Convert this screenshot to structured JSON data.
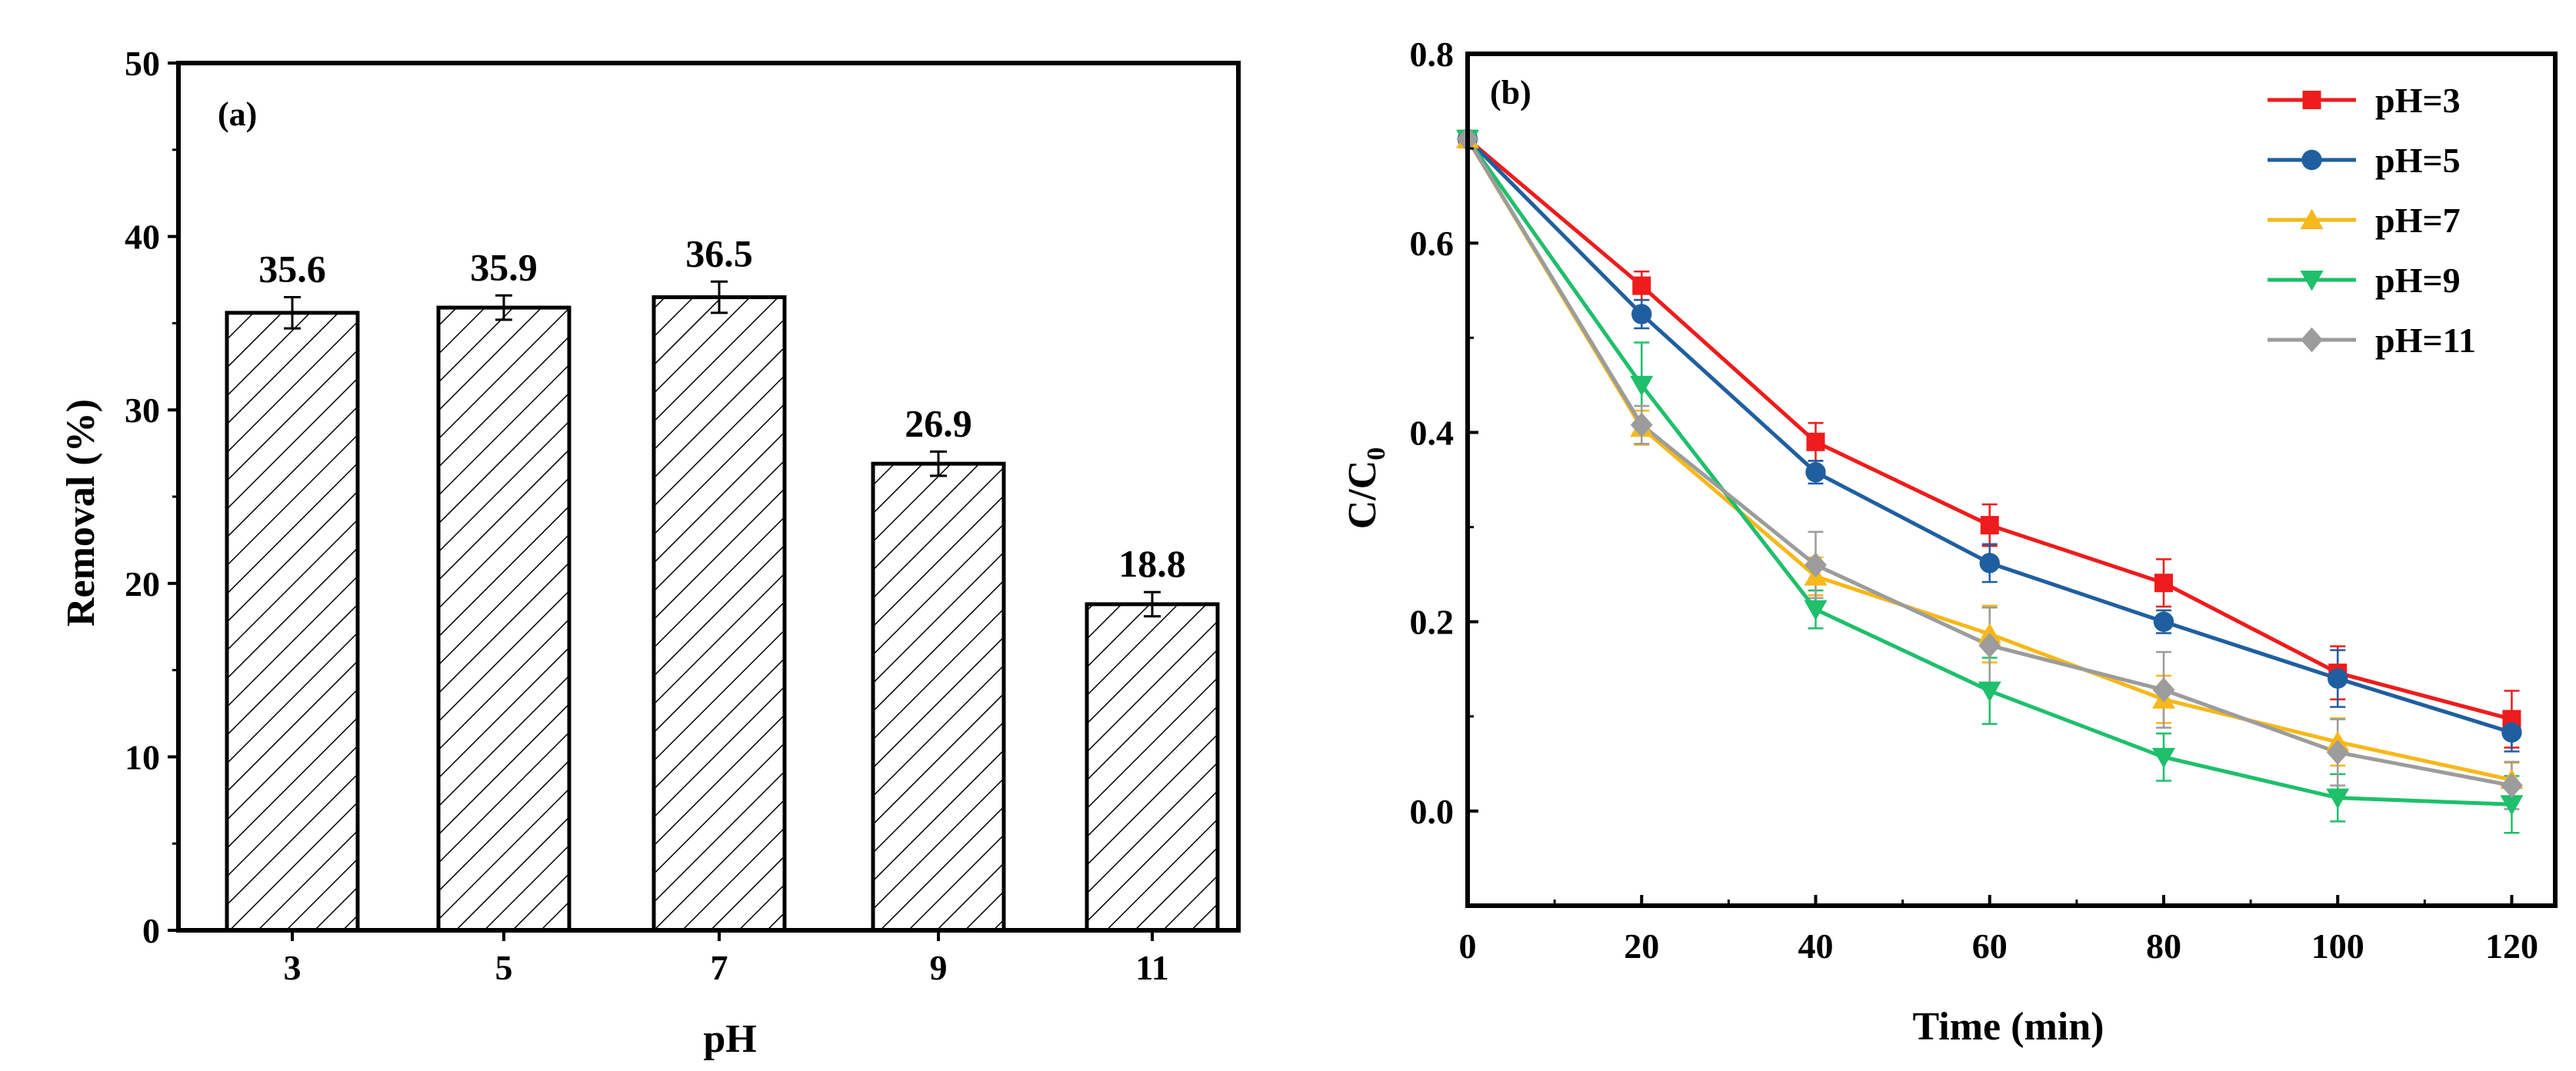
{
  "chart_data": [
    {
      "type": "bar",
      "panel_label": "(a)",
      "categories": [
        "3",
        "5",
        "7",
        "9",
        "11"
      ],
      "values": [
        35.6,
        35.9,
        36.5,
        26.9,
        18.8
      ],
      "value_labels": [
        "35.6",
        "35.9",
        "36.5",
        "26.9",
        "18.8"
      ],
      "errors": [
        0.9,
        0.7,
        0.9,
        0.7,
        0.7
      ],
      "xlabel": "pH",
      "ylabel": "Removal (%)",
      "ylim": [
        0,
        50
      ],
      "yticks": [
        0,
        10,
        20,
        30,
        40,
        50
      ],
      "bar_fill": "hatched",
      "grid": false
    },
    {
      "type": "line",
      "panel_label": "(b)",
      "x": [
        0,
        20,
        40,
        60,
        80,
        100,
        120
      ],
      "xlabel": "Time (min)",
      "ylabel": "C/C",
      "ylabel_sub": "0",
      "xlim": [
        0,
        125
      ],
      "ylim": [
        -0.1,
        0.8
      ],
      "xticks": [
        0,
        20,
        40,
        60,
        80,
        100,
        120
      ],
      "yticks": [
        0.0,
        0.2,
        0.4,
        0.6,
        0.8
      ],
      "legend_position": "top-right",
      "grid": false,
      "series": [
        {
          "name": "pH=3",
          "color": "#ee1c1c",
          "marker": "square",
          "values": [
            0.71,
            0.555,
            0.39,
            0.302,
            0.241,
            0.146,
            0.097
          ],
          "errors": [
            0,
            0.015,
            0.02,
            0.022,
            0.025,
            0.028,
            0.03
          ]
        },
        {
          "name": "pH=5",
          "color": "#1f5fa0",
          "marker": "circle",
          "values": [
            0.71,
            0.525,
            0.358,
            0.262,
            0.2,
            0.14,
            0.083
          ],
          "errors": [
            0,
            0.015,
            0.012,
            0.02,
            0.012,
            0.03,
            0.02
          ]
        },
        {
          "name": "pH=7",
          "color": "#f6b81a",
          "marker": "triangle-up",
          "values": [
            0.71,
            0.405,
            0.248,
            0.187,
            0.118,
            0.073,
            0.033
          ],
          "errors": [
            0,
            0.018,
            0.02,
            0.03,
            0.025,
            0.025,
            0.018
          ]
        },
        {
          "name": "pH=9",
          "color": "#1fbf6b",
          "marker": "triangle-down",
          "values": [
            0.71,
            0.45,
            0.213,
            0.127,
            0.057,
            0.014,
            0.007
          ],
          "errors": [
            0,
            0.045,
            0.02,
            0.035,
            0.025,
            0.025,
            0.03
          ]
        },
        {
          "name": "pH=11",
          "color": "#9c9c9c",
          "marker": "diamond",
          "values": [
            0.71,
            0.408,
            0.26,
            0.175,
            0.128,
            0.062,
            0.027
          ],
          "errors": [
            0,
            0.02,
            0.035,
            0.04,
            0.04,
            0.035,
            0.025
          ]
        }
      ]
    }
  ]
}
